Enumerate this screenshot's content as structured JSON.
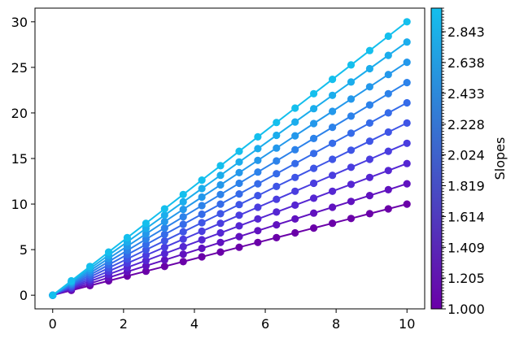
{
  "chart_data": {
    "type": "line",
    "title": "",
    "xlabel": "",
    "ylabel": "",
    "xlim": [
      -0.5,
      10.5
    ],
    "ylim": [
      -1.5,
      31.5
    ],
    "x_ticks": [
      "0",
      "2",
      "4",
      "6",
      "8",
      "10"
    ],
    "y_ticks": [
      "0",
      "5",
      "10",
      "15",
      "20",
      "25",
      "30"
    ],
    "x": [
      0,
      0.5263,
      1.0526,
      1.5789,
      2.1053,
      2.6316,
      3.1579,
      3.6842,
      4.2105,
      4.7368,
      5.2632,
      5.7895,
      6.3158,
      6.8421,
      7.3684,
      7.8947,
      8.4211,
      8.9474,
      9.4737,
      10
    ],
    "series": [
      {
        "slope": 1.0,
        "color": "#6a00a8"
      },
      {
        "slope": 1.2222,
        "color": "#6012bf"
      },
      {
        "slope": 1.4444,
        "color": "#5526d2"
      },
      {
        "slope": 1.6667,
        "color": "#4a3ddf"
      },
      {
        "slope": 1.8889,
        "color": "#3f55e6"
      },
      {
        "slope": 2.1111,
        "color": "#356be9"
      },
      {
        "slope": 2.3333,
        "color": "#2c82ea"
      },
      {
        "slope": 2.5556,
        "color": "#2398eb"
      },
      {
        "slope": 2.7778,
        "color": "#1badec"
      },
      {
        "slope": 3.0,
        "color": "#14bfed"
      }
    ],
    "colorbar": {
      "label": "Slopes",
      "range": [
        1.0,
        3.0
      ],
      "ticks": [
        "1.000",
        "1.205",
        "1.409",
        "1.614",
        "1.819",
        "2.024",
        "2.228",
        "2.433",
        "2.638",
        "2.843"
      ],
      "color_low": "#6a00a8",
      "color_high": "#14bfed"
    }
  }
}
